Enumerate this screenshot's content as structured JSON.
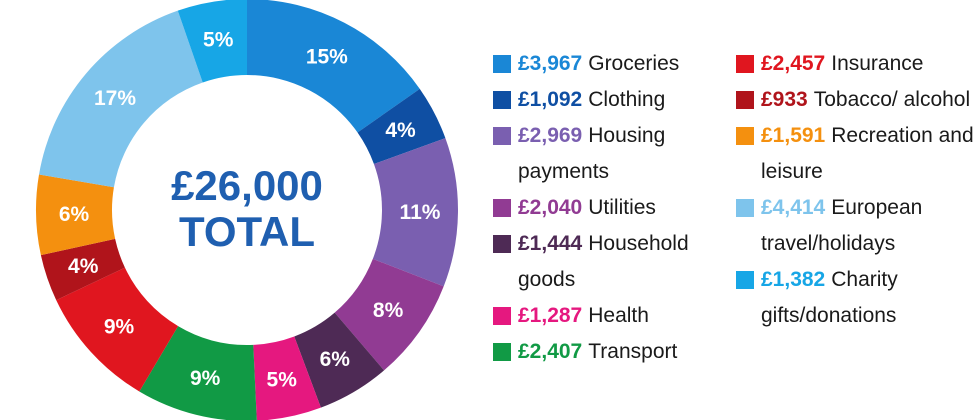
{
  "chart_data": {
    "type": "pie",
    "variant": "donut",
    "center_text": {
      "line1": "£26,000",
      "line2": "TOTAL"
    },
    "total": 26000,
    "slices": [
      {
        "name": "Groceries",
        "label": "15%",
        "percent": 15,
        "amount": "£3,967",
        "value": 3967,
        "color": "#1a87d6"
      },
      {
        "name": "Clothing",
        "label": "4%",
        "percent": 4,
        "amount": "£1,092",
        "value": 1092,
        "color": "#0f4fa3"
      },
      {
        "name": "Housing payments",
        "label": "11%",
        "percent": 11,
        "amount": "£2,969",
        "value": 2969,
        "color": "#7a5fb0"
      },
      {
        "name": "Utilities",
        "label": "8%",
        "percent": 8,
        "amount": "£2,040",
        "value": 2040,
        "color": "#913b93"
      },
      {
        "name": "Household goods",
        "label": "6%",
        "percent": 6,
        "amount": "£1,444",
        "value": 1444,
        "color": "#4e2a55"
      },
      {
        "name": "Health",
        "label": "5%",
        "percent": 5,
        "amount": "£1,287",
        "value": 1287,
        "color": "#e5187f"
      },
      {
        "name": "Transport",
        "label": "9%",
        "percent": 9,
        "amount": "£2,407",
        "value": 2407,
        "color": "#119a45"
      },
      {
        "name": "Insurance",
        "label": "9%",
        "percent": 9,
        "amount": "£2,457",
        "value": 2457,
        "color": "#e0161f"
      },
      {
        "name": "Tobacco/ alcohol",
        "label": "4%",
        "percent": 4,
        "amount": "£933",
        "value": 933,
        "color": "#b0141b"
      },
      {
        "name": "Recreation and leisure",
        "label": "6%",
        "percent": 6,
        "amount": "£1,591",
        "value": 1591,
        "color": "#f4900f"
      },
      {
        "name": "European travel/holidays",
        "label": "17%",
        "percent": 17,
        "amount": "£4,414",
        "value": 4414,
        "color": "#7ec4ec"
      },
      {
        "name": "Charity gifts/donations",
        "label": "5%",
        "percent": 5,
        "amount": "£1,382",
        "value": 1382,
        "color": "#17a6e6"
      }
    ],
    "legend_placement": "right"
  }
}
